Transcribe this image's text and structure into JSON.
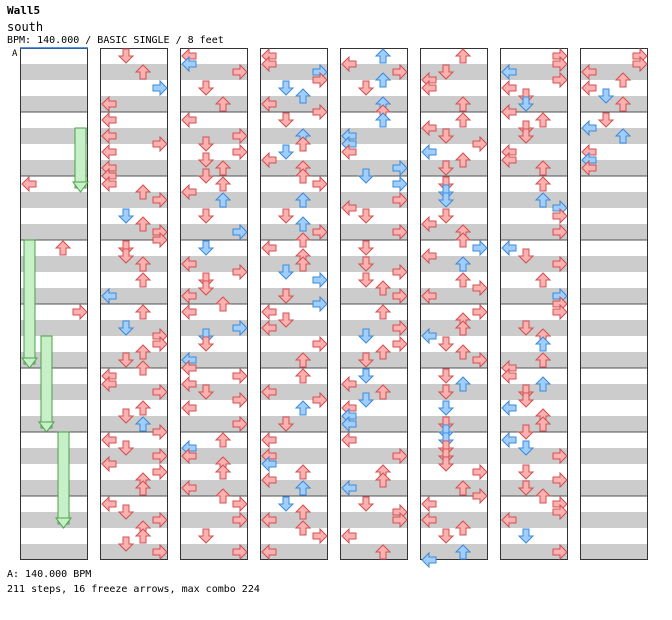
{
  "header": {
    "title": "Wall5",
    "artist": "south",
    "info": "BPM: 140.000 / BASIC SINGLE / 8 feet"
  },
  "footer": {
    "bpm_legend": "A: 140.000 BPM",
    "stats": "211 steps, 16 freeze arrows, max combo 224"
  },
  "bpm_marker": "A",
  "colors": {
    "stripe": "#cccccc",
    "red_fill": "#ffb0b0",
    "red_stroke": "#d05050",
    "blue_fill": "#9fcfff",
    "blue_stroke": "#3d88d8",
    "freeze_fill": "#c8f0c8",
    "freeze_stroke": "#4aa04a",
    "bpm_line": "#2a6fd0"
  },
  "note_types": {
    "L": "left",
    "D": "down",
    "U": "up",
    "R": "right"
  },
  "chart_data": {
    "type": "table",
    "measures_per_column": 8,
    "rows_per_measure": 16,
    "notes": [
      {
        "m": 0,
        "r": 16,
        "d": "L",
        "c": "r"
      },
      {
        "m": 0,
        "r": 24,
        "d": "U",
        "c": "r"
      },
      {
        "m": 0,
        "r": 32,
        "d": "R",
        "c": "r"
      },
      {
        "m": 0,
        "r": 64,
        "d": "D",
        "c": "b"
      },
      {
        "m": 1,
        "r": 0,
        "d": "D",
        "c": "r"
      },
      {
        "m": 1,
        "r": 16,
        "d": "R",
        "c": "r"
      },
      {
        "m": 1,
        "r": 32,
        "d": "U",
        "c": "r"
      },
      {
        "m": 1,
        "r": 48,
        "d": "D",
        "c": "r"
      },
      {
        "m": 1,
        "r": 16,
        "d": "L",
        "c": "r"
      },
      {
        "m": 1,
        "r": 20,
        "d": "D",
        "c": "b"
      },
      {
        "m": 1,
        "r": 32,
        "d": "L",
        "c": "r"
      },
      {
        "m": 1,
        "r": 48,
        "d": "U",
        "c": "r"
      },
      {
        "m": 1,
        "r": 8,
        "d": "R",
        "c": "r"
      },
      {
        "m": 1,
        "r": 0,
        "d": "L",
        "c": "r"
      },
      {
        "m": 1,
        "r": 32,
        "d": "D",
        "c": "r"
      },
      {
        "m": 1,
        "r": 40,
        "d": "U",
        "c": "r"
      },
      {
        "m": 1,
        "r": 56,
        "d": "D",
        "c": "r"
      },
      {
        "m": 1,
        "r": 60,
        "d": "U",
        "c": "r"
      },
      {
        "m": 1,
        "r": 12,
        "d": "D",
        "c": "r"
      },
      {
        "m": 1,
        "r": 28,
        "d": "U",
        "c": "r"
      },
      {
        "m": 1,
        "r": 52,
        "d": "U",
        "c": "r"
      },
      {
        "m": 1,
        "r": 40,
        "d": "R",
        "c": "b"
      },
      {
        "m": 1,
        "r": 44,
        "d": "R",
        "c": "r"
      },
      {
        "m": 1,
        "r": 20,
        "d": "R",
        "c": "b"
      },
      {
        "m": 2,
        "r": 32,
        "d": "U",
        "c": "r"
      },
      {
        "m": 2,
        "r": 40,
        "d": "L",
        "c": "r"
      },
      {
        "m": 2,
        "r": 16,
        "d": "L",
        "c": "r"
      },
      {
        "m": 2,
        "r": 56,
        "d": "L",
        "c": "r"
      },
      {
        "m": 2,
        "r": 24,
        "d": "D",
        "c": "r"
      },
      {
        "m": 2,
        "r": 0,
        "d": "U",
        "c": "r"
      },
      {
        "m": 3,
        "r": 8,
        "d": "R",
        "c": "r"
      },
      {
        "m": 3,
        "r": 44,
        "d": "U",
        "c": "r"
      },
      {
        "m": 4,
        "r": 0,
        "d": "L",
        "c": "r"
      },
      {
        "m": 4,
        "r": 16,
        "d": "U",
        "c": "r"
      },
      {
        "m": 4,
        "r": 28,
        "d": "D",
        "c": "r"
      },
      {
        "m": 4,
        "r": 44,
        "d": "U",
        "c": "r"
      }
    ],
    "freezes": [
      {
        "col": 0,
        "lane": 0,
        "start_row": 12,
        "end_row": 20
      },
      {
        "col": 0,
        "lane": 3,
        "start_row": 5,
        "end_row": 9
      },
      {
        "col": 0,
        "lane": 1,
        "start_row": 18,
        "end_row": 24
      },
      {
        "col": 0,
        "lane": 2,
        "start_row": 24,
        "end_row": 30
      }
    ]
  }
}
